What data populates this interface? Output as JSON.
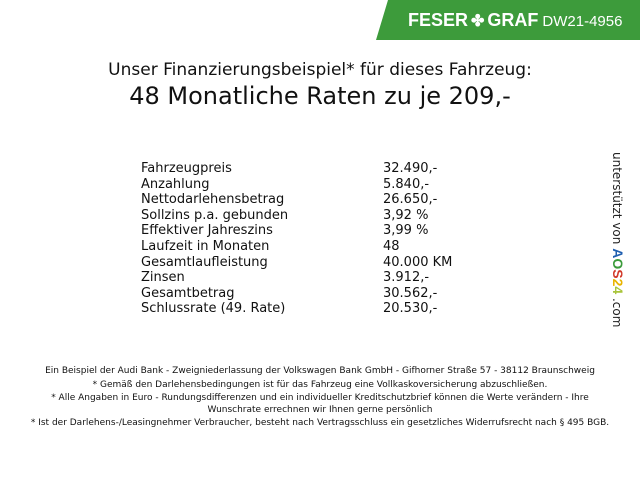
{
  "header": {
    "brand": "FESER",
    "brand2": "GRAF",
    "brand_icon": "clover-icon",
    "code": "DW21-4956",
    "color": "#3d9b3b"
  },
  "title": {
    "line1": "Unser Finanzierungsbeispiel* für dieses Fahrzeug:",
    "line2": "48 Monatliche Raten zu je 209,-"
  },
  "rows": [
    {
      "label": "Fahrzeugpreis",
      "value": "32.490,-"
    },
    {
      "label": "Anzahlung",
      "value": "5.840,-"
    },
    {
      "label": "Nettodarlehensbetrag",
      "value": "26.650,-"
    },
    {
      "label": "Sollzins p.a. gebunden",
      "value": "3,92 %"
    },
    {
      "label": "Effektiver Jahreszins",
      "value": "3,99 %"
    },
    {
      "label": "Laufzeit in Monaten",
      "value": "48"
    },
    {
      "label": "Gesamtlaufleistung",
      "value": "40.000 KM"
    },
    {
      "label": "Zinsen",
      "value": "3.912,-"
    },
    {
      "label": "Gesamtbetrag",
      "value": "30.562,-"
    },
    {
      "label": "Schlussrate (49. Rate)",
      "value": "20.530,-"
    }
  ],
  "side": {
    "text": "unterstützt von",
    "logo": "AOS24",
    "suffix": ".com"
  },
  "footer": [
    "Ein Beispiel der Audi Bank - Zweigniederlassung der Volkswagen Bank GmbH - Gifhorner Straße 57 - 38112 Braunschweig",
    "* Gemäß den Darlehensbedingungen ist für das Fahrzeug eine Vollkaskoversicherung abzuschließen.",
    "* Alle Angaben in Euro - Rundungsdifferenzen und ein individueller Kreditschutzbrief können die Werte verändern - Ihre Wunschrate errechnen wir Ihnen gerne persönlich",
    "* Ist der Darlehens-/Leasingnehmer Verbraucher, besteht nach Vertragsschluss ein gesetzliches Widerrufsrecht nach § 495 BGB."
  ]
}
